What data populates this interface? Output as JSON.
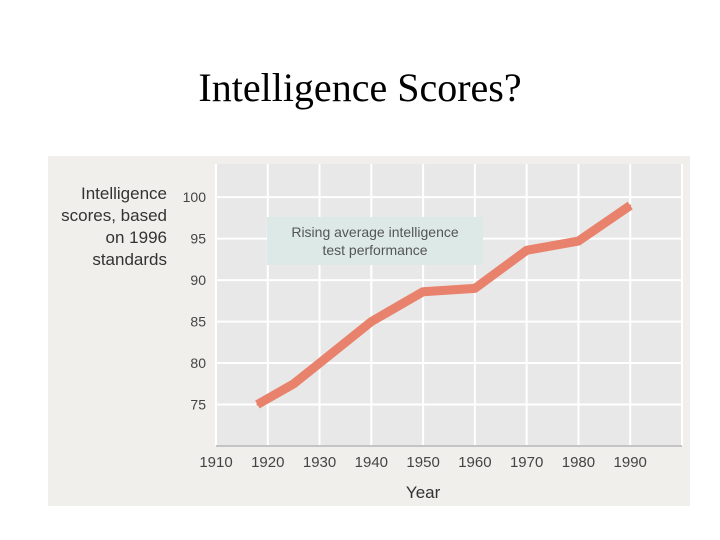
{
  "slide": {
    "title": "Intelligence Scores?"
  },
  "chart_data": {
    "type": "line",
    "ylabel_lines": [
      "Intelligence",
      "scores, based",
      "on 1996",
      "standards"
    ],
    "xlabel": "Year",
    "annotation_lines": [
      "Rising average intelligence",
      "test performance"
    ],
    "x_ticks": [
      1910,
      1920,
      1930,
      1940,
      1950,
      1960,
      1970,
      1980,
      1990
    ],
    "y_ticks": [
      75,
      80,
      85,
      90,
      95,
      100
    ],
    "xlim": [
      1910,
      2000
    ],
    "ylim": [
      70,
      104
    ],
    "grid": true,
    "series": [
      {
        "x": [
          1918,
          1925,
          1930,
          1940,
          1950,
          1960,
          1970,
          1980,
          1990
        ],
        "y": [
          75.0,
          77.5,
          80.0,
          85.0,
          88.6,
          89.0,
          93.6,
          94.7,
          99.0
        ]
      }
    ],
    "colors": {
      "panel": "#f1efeb",
      "plot": "#e8e8e8",
      "grid": "#ffffff",
      "line": "#e8826c",
      "annotation_bg": "#dce9e7",
      "axis_text": "#444444",
      "label_text": "#333333",
      "annotation_text": "#555555",
      "axis_line": "#888888"
    }
  }
}
